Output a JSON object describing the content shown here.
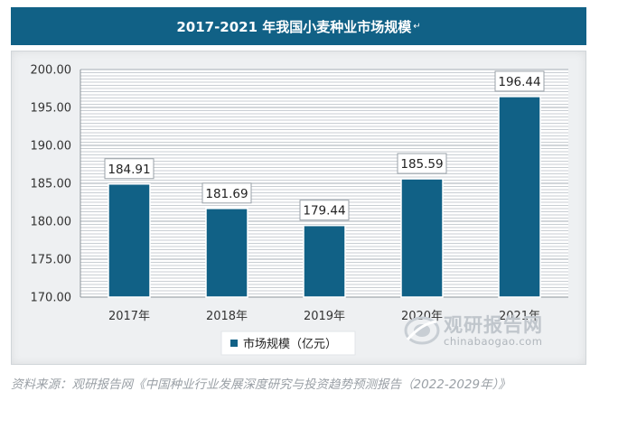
{
  "title": "2017-2021 年我国小麦种业市场规模",
  "title_mark": "↵",
  "source_text": "资料来源：观研报告网《中国种业行业发展深度研究与投资趋势预测报告（2022-2029年）》",
  "watermark": {
    "cn": "观研报告网",
    "en": "chinabaogao.com"
  },
  "colors": {
    "bar": "#116186",
    "title_bg": "#116186",
    "panel": "#eef0f2",
    "grid": "#a6adb4"
  },
  "chart_data": {
    "type": "bar",
    "categories": [
      "2017年",
      "2018年",
      "2019年",
      "2020年",
      "2021年"
    ],
    "values": [
      184.91,
      181.69,
      179.44,
      185.59,
      196.44
    ],
    "ylim": [
      170,
      200
    ],
    "y_ticks": [
      "170.00",
      "175.00",
      "180.00",
      "185.00",
      "190.00",
      "195.00",
      "200.00"
    ],
    "data_labels": [
      "184.91",
      "181.69",
      "179.44",
      "185.59",
      "196.44"
    ],
    "legend": {
      "name": "市场规模（亿元）",
      "placement": "bottom"
    },
    "grid": true
  }
}
